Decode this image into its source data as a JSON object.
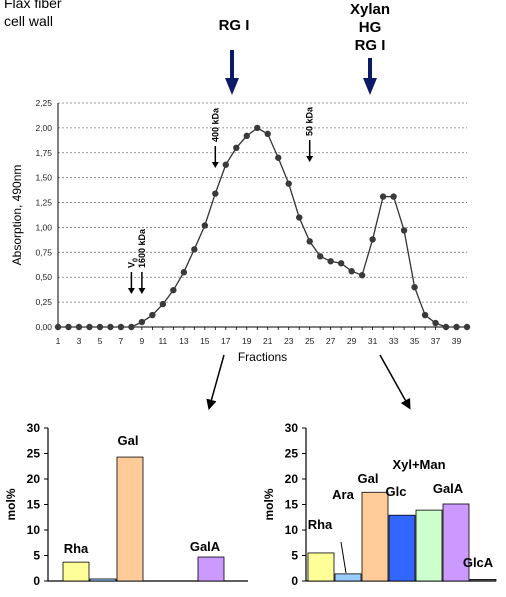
{
  "corner_label": [
    "Flax fiber",
    "cell wall"
  ],
  "peak_labels": {
    "left": [
      "RG I"
    ],
    "right": [
      "Xylan",
      "HG",
      "RG I"
    ]
  },
  "colors": {
    "peak_arrow": "#0d1a66",
    "curve": "#333333",
    "Rha": "#ffff99",
    "Ara": "#99ccff",
    "Gal": "#ffcc99",
    "Glc": "#3366ff",
    "Xyl+Man": "#ccffcc",
    "GalA": "#cc99ff",
    "GlcA": "#666666"
  },
  "chart_data": [
    {
      "type": "line",
      "xlabel": "Fractions",
      "ylabel": "Absorption, 490nm",
      "xlim": [
        1,
        40
      ],
      "ylim": [
        0,
        2.25
      ],
      "x_ticks": [
        "1",
        "3",
        "5",
        "7",
        "9",
        "11",
        "13",
        "15",
        "17",
        "19",
        "21",
        "23",
        "25",
        "27",
        "29",
        "31",
        "33",
        "35",
        "37",
        "39"
      ],
      "y_ticks": [
        "0,00",
        "0,25",
        "0,50",
        "0,75",
        "1,00",
        "1,25",
        "1,50",
        "1,75",
        "2,00",
        "2,25"
      ],
      "grid": "horizontal dotted",
      "series": [
        {
          "x": [
            1,
            2,
            3,
            4,
            5,
            6,
            7,
            8,
            9,
            10,
            11,
            12,
            13,
            14,
            15,
            16,
            17,
            18,
            19,
            20,
            21,
            22,
            23,
            24,
            25,
            26,
            27,
            28,
            29,
            30,
            31,
            32,
            33,
            34,
            35,
            36,
            37,
            38,
            39,
            40
          ],
          "values": [
            0.0,
            0.0,
            0.0,
            0.0,
            0.0,
            0.0,
            0.0,
            0.0,
            0.05,
            0.12,
            0.23,
            0.37,
            0.55,
            0.78,
            1.02,
            1.34,
            1.63,
            1.8,
            1.92,
            2.0,
            1.94,
            1.7,
            1.44,
            1.1,
            0.86,
            0.71,
            0.66,
            0.64,
            0.56,
            0.52,
            0.88,
            1.31,
            1.31,
            0.97,
            0.4,
            0.12,
            0.04,
            0.0,
            0.0,
            0.0
          ]
        }
      ],
      "annotations": [
        {
          "text": "V",
          "sub": "0",
          "x": 8
        },
        {
          "text": "1600 kDa",
          "x": 9
        },
        {
          "text": "400 kDa",
          "x": 16
        },
        {
          "text": "50 kDa",
          "x": 25
        }
      ]
    },
    {
      "type": "bar",
      "ylabel": "mol%",
      "ylim": [
        0,
        30
      ],
      "y_ticks": [
        "0",
        "5",
        "10",
        "15",
        "20",
        "25",
        "30"
      ],
      "categories": [
        "Rha",
        "",
        "Gal",
        "",
        "",
        "GalA"
      ],
      "values": [
        3.7,
        0.4,
        24.3,
        0,
        0,
        4.7
      ],
      "bar_labels": [
        "Rha",
        "",
        "Gal",
        "",
        "",
        "GalA"
      ],
      "colors": [
        "#ffff99",
        "#99ccff",
        "#ffcc99",
        "",
        "",
        "#cc99ff"
      ]
    },
    {
      "type": "bar",
      "ylabel": "mol%",
      "ylim": [
        0,
        30
      ],
      "y_ticks": [
        "0",
        "5",
        "10",
        "15",
        "20",
        "25",
        "30"
      ],
      "categories": [
        "Rha",
        "Ara",
        "Gal",
        "Glc",
        "Xyl+Man",
        "GalA",
        "GlcA"
      ],
      "values": [
        5.5,
        1.4,
        17.4,
        12.9,
        13.9,
        15.1,
        0.3
      ],
      "colors": [
        "#ffff99",
        "#99ccff",
        "#ffcc99",
        "#3366ff",
        "#ccffcc",
        "#cc99ff",
        "#666666"
      ]
    }
  ]
}
